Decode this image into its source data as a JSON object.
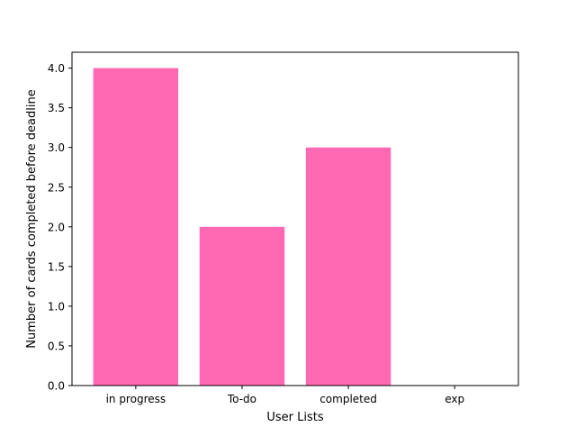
{
  "chart_data": {
    "type": "bar",
    "title": "",
    "xlabel": "User Lists",
    "ylabel": "Number of cards completed before deadline",
    "categories": [
      "in progress",
      "To-do",
      "completed",
      "exp"
    ],
    "values": [
      4.0,
      2.0,
      3.0,
      0.0
    ],
    "ylim": [
      0,
      4.2
    ],
    "yticks": [
      "0.0",
      "0.5",
      "1.0",
      "1.5",
      "2.0",
      "2.5",
      "3.0",
      "3.5",
      "4.0"
    ],
    "grid": false,
    "bar_color": "#ff69b4"
  }
}
